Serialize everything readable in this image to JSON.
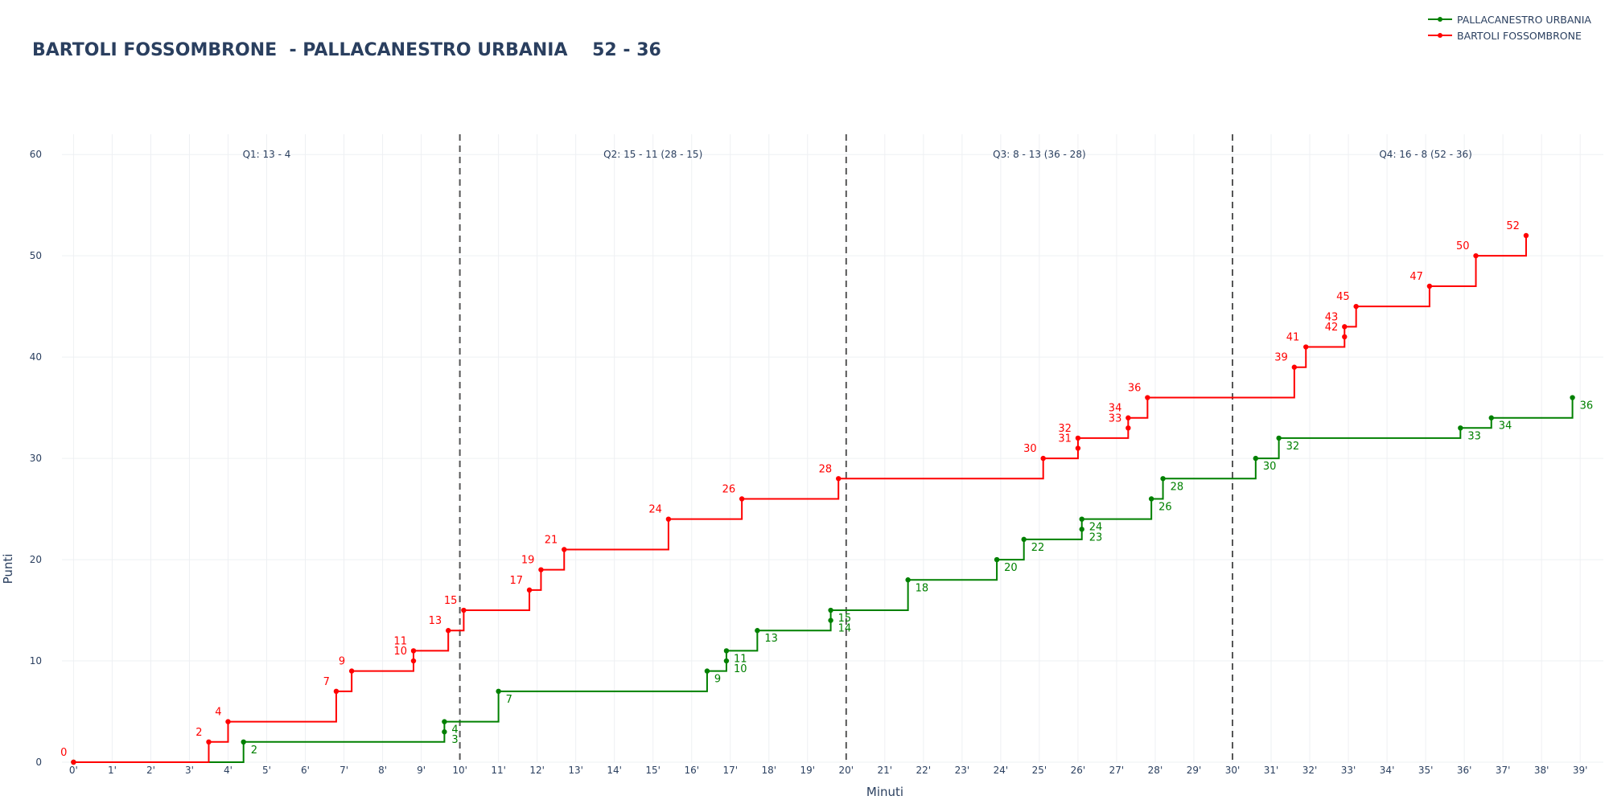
{
  "chart_data": {
    "type": "line",
    "title": "BARTOLI FOSSOMBRONE  - PALLACANESTRO URBANIA    52 - 36",
    "xlabel": "Minuti",
    "ylabel": "Punti",
    "xlim": [
      -0.3,
      39.6
    ],
    "ylim": [
      0,
      62
    ],
    "grid": true,
    "legend_position": "top-right",
    "x_ticks": [
      0,
      1,
      2,
      3,
      4,
      5,
      6,
      7,
      8,
      9,
      10,
      11,
      12,
      13,
      14,
      15,
      16,
      17,
      18,
      19,
      20,
      21,
      22,
      23,
      24,
      25,
      26,
      27,
      28,
      29,
      30,
      31,
      32,
      33,
      34,
      35,
      36,
      37,
      38,
      39
    ],
    "x_tick_labels": [
      "0'",
      "1'",
      "2'",
      "3'",
      "4'",
      "5'",
      "6'",
      "7'",
      "8'",
      "9'",
      "10'",
      "11'",
      "12'",
      "13'",
      "14'",
      "15'",
      "16'",
      "17'",
      "18'",
      "19'",
      "20'",
      "21'",
      "22'",
      "23'",
      "24'",
      "25'",
      "26'",
      "27'",
      "28'",
      "29'",
      "30'",
      "31'",
      "32'",
      "33'",
      "34'",
      "35'",
      "36'",
      "37'",
      "38'",
      "39'"
    ],
    "y_ticks": [
      0,
      10,
      20,
      30,
      40,
      50,
      60
    ],
    "y_tick_labels": [
      "0",
      "10",
      "20",
      "30",
      "40",
      "50",
      "60"
    ],
    "quarter_dividers": [
      10,
      20,
      30
    ],
    "annotations": [
      {
        "text": "Q1: 13 - 4",
        "x": 5,
        "y": 60
      },
      {
        "text": "Q2: 15 - 11 (28 - 15)",
        "x": 15,
        "y": 60
      },
      {
        "text": "Q3: 8 - 13 (36 - 28)",
        "x": 25,
        "y": 60
      },
      {
        "text": "Q4: 16 - 8 (52 - 36)",
        "x": 35,
        "y": 60
      }
    ],
    "series": [
      {
        "name": "PALLACANESTRO URBANIA",
        "color": "#008000",
        "label_side": "below-right",
        "x": [
          0,
          4.4,
          9.6,
          9.6,
          11.0,
          16.4,
          16.9,
          16.9,
          17.7,
          19.6,
          19.6,
          21.6,
          23.9,
          24.6,
          26.1,
          26.1,
          27.9,
          28.2,
          30.6,
          31.2,
          35.9,
          36.7,
          38.8
        ],
        "y": [
          0,
          2,
          3,
          4,
          7,
          9,
          10,
          11,
          13,
          14,
          15,
          18,
          20,
          22,
          23,
          24,
          26,
          28,
          30,
          32,
          33,
          34,
          36
        ],
        "labels": [
          "",
          "2",
          "3",
          "4",
          "7",
          "9",
          "10",
          "11",
          "13",
          "14",
          "15",
          "18",
          "20",
          "22",
          "23",
          "24",
          "26",
          "28",
          "30",
          "32",
          "33",
          "34",
          "36"
        ]
      },
      {
        "name": "BARTOLI FOSSOMBRONE",
        "color": "#ff0000",
        "label_side": "above-left",
        "x": [
          0,
          3.5,
          4.0,
          6.8,
          7.2,
          8.8,
          8.8,
          9.7,
          10.1,
          11.8,
          12.1,
          12.7,
          15.4,
          17.3,
          19.8,
          25.1,
          26.0,
          26.0,
          27.3,
          27.3,
          27.8,
          31.6,
          31.9,
          32.9,
          32.9,
          33.2,
          35.1,
          36.3,
          37.6
        ],
        "y": [
          0,
          2,
          4,
          7,
          9,
          10,
          11,
          13,
          15,
          17,
          19,
          21,
          24,
          26,
          28,
          30,
          31,
          32,
          33,
          34,
          36,
          39,
          41,
          42,
          43,
          45,
          47,
          50,
          52
        ],
        "labels": [
          "0",
          "2",
          "4",
          "7",
          "9",
          "10",
          "11",
          "13",
          "15",
          "17",
          "19",
          "21",
          "24",
          "26",
          "28",
          "30",
          "31",
          "32",
          "33",
          "34",
          "36",
          "39",
          "41",
          "42",
          "43",
          "45",
          "47",
          "50",
          "52"
        ]
      }
    ]
  }
}
